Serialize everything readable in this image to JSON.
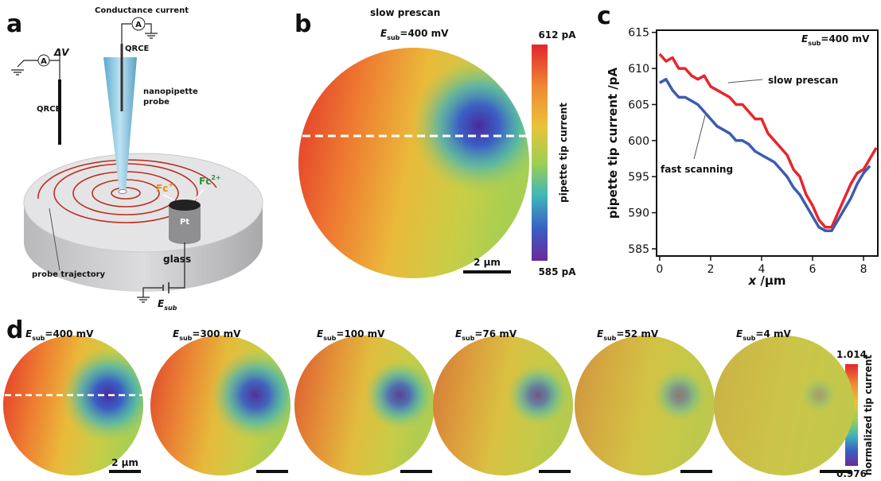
{
  "figure": {
    "panel_labels": [
      "a",
      "b",
      "c",
      "d"
    ],
    "schematic": {
      "conductance_current": "Conductance current",
      "ammeter": "A",
      "delta_v": "ΔV",
      "qrce": "QRCE",
      "nanopipette_probe": [
        "nanopipette",
        "probe"
      ],
      "fc_plus": {
        "base": "Fc",
        "sup": "+"
      },
      "fc_2plus": {
        "base": "Fc",
        "sup": "2+"
      },
      "pt": "Pt",
      "glass": "glass",
      "probe_trajectory": "probe trajectory",
      "e_sub": {
        "base": "E",
        "sub": "sub"
      }
    },
    "map_b": {
      "title": "slow prescan",
      "potential": {
        "base": "E",
        "sub": "sub",
        "rest": "=400 mV"
      },
      "colorbar_max": "612 pA",
      "colorbar_min": "585 pA",
      "colorbar_label": "pipette tip current",
      "scalebar": "2 μm"
    },
    "maps_d": {
      "potentials": [
        {
          "base": "E",
          "sub": "sub",
          "rest": "=400 mV"
        },
        {
          "base": "E",
          "sub": "sub",
          "rest": "=300 mV"
        },
        {
          "base": "E",
          "sub": "sub",
          "rest": "=100 mV"
        },
        {
          "base": "E",
          "sub": "sub",
          "rest": "=76 mV"
        },
        {
          "base": "E",
          "sub": "sub",
          "rest": "=52 mV"
        },
        {
          "base": "E",
          "sub": "sub",
          "rest": "=4 mV"
        }
      ],
      "colorbar_max": "1.014",
      "colorbar_min": "0.976",
      "colorbar_label": "normalized tip current",
      "scalebar": "2 μm"
    }
  },
  "chart_data": {
    "type": "line",
    "y_label": "pipette tip current /pA",
    "x_label": {
      "italic": "x",
      "rest": " /μm"
    },
    "annotation": {
      "base": "E",
      "sub": "sub",
      "rest": "=400 mV"
    },
    "x": [
      0,
      0.25,
      0.5,
      0.75,
      1,
      1.25,
      1.5,
      1.75,
      2,
      2.25,
      2.5,
      2.75,
      3,
      3.25,
      3.5,
      3.75,
      4,
      4.25,
      4.5,
      4.75,
      5,
      5.25,
      5.5,
      5.75,
      6,
      6.25,
      6.5,
      6.75,
      7,
      7.25,
      7.5,
      7.75,
      8,
      8.25,
      8.5
    ],
    "series": [
      {
        "name": "slow prescan",
        "color": "#e8262b",
        "values": [
          612,
          611,
          611.5,
          610,
          610,
          609,
          608.5,
          609,
          607.5,
          607,
          606.5,
          606,
          605,
          605,
          604,
          603,
          603,
          601,
          600,
          599,
          598,
          596,
          595,
          592.5,
          591,
          589,
          588,
          588,
          590,
          592,
          594,
          595.5,
          596,
          597.5,
          599
        ]
      },
      {
        "name": "fast scanning",
        "color": "#3b5cb0",
        "values": [
          608,
          608.5,
          607,
          606,
          606,
          605.5,
          605,
          604,
          603,
          602,
          601.5,
          601,
          600,
          600,
          599.5,
          598.5,
          598,
          597.5,
          597,
          596,
          595,
          593.5,
          592.5,
          591,
          589.5,
          588,
          587.5,
          587.5,
          589,
          590.5,
          592,
          594,
          595.5,
          596.5,
          null
        ]
      }
    ],
    "xlim": [
      -0.12,
      8.56
    ],
    "ylim": [
      584,
      615.3
    ],
    "xticks": [
      0,
      2,
      4,
      6,
      8
    ],
    "yticks": [
      585,
      590,
      595,
      600,
      605,
      610,
      615
    ]
  }
}
